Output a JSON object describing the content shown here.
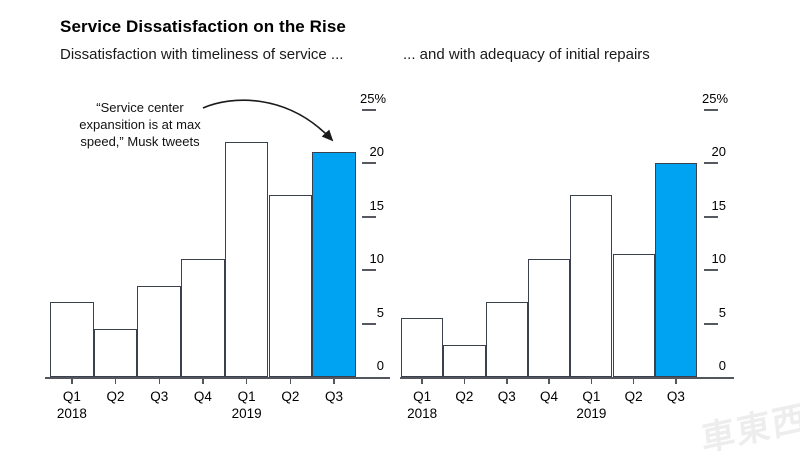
{
  "header": {
    "title": "Service Dissatisfaction on the Rise"
  },
  "annotation": {
    "lines": [
      "“Service center",
      "expansition is at max",
      "speed,” Musk tweets"
    ]
  },
  "watermark": {
    "text": "車東西"
  },
  "colors": {
    "highlight_blue": "#00a3f2",
    "bar_fill": "#ffffff",
    "bar_border": "#3a404c",
    "axis": "#53565c",
    "text": "#000000"
  },
  "chart_data": [
    {
      "type": "bar",
      "subtitle": "Dissatisfaction with timeliness of service ...",
      "categories": [
        "Q1",
        "Q2",
        "Q3",
        "Q4",
        "Q1",
        "Q2",
        "Q3"
      ],
      "year_labels": [
        {
          "index": 0,
          "text": "2018"
        },
        {
          "index": 4,
          "text": "2019"
        }
      ],
      "values": [
        7,
        4.5,
        8.5,
        11,
        22,
        17,
        21
      ],
      "unit": "%",
      "ylim": [
        0,
        25
      ],
      "yticks": [
        0,
        5,
        10,
        15,
        20,
        25
      ],
      "ytick_labels": [
        "0",
        "5",
        "10",
        "15",
        "20",
        "25%"
      ],
      "highlight_index": 6,
      "legend": "none",
      "grid": "tick-dashes-right"
    },
    {
      "type": "bar",
      "subtitle": "... and with adequacy of initial repairs",
      "categories": [
        "Q1",
        "Q2",
        "Q3",
        "Q4",
        "Q1",
        "Q2",
        "Q3"
      ],
      "year_labels": [
        {
          "index": 0,
          "text": "2018"
        },
        {
          "index": 4,
          "text": "2019"
        }
      ],
      "values": [
        5.5,
        3,
        7,
        11,
        17,
        11.5,
        20
      ],
      "unit": "%",
      "ylim": [
        0,
        25
      ],
      "yticks": [
        0,
        5,
        10,
        15,
        20,
        25
      ],
      "ytick_labels": [
        "0",
        "5",
        "10",
        "15",
        "20",
        "25%"
      ],
      "highlight_index": 6,
      "legend": "none",
      "grid": "tick-dashes-right"
    }
  ]
}
